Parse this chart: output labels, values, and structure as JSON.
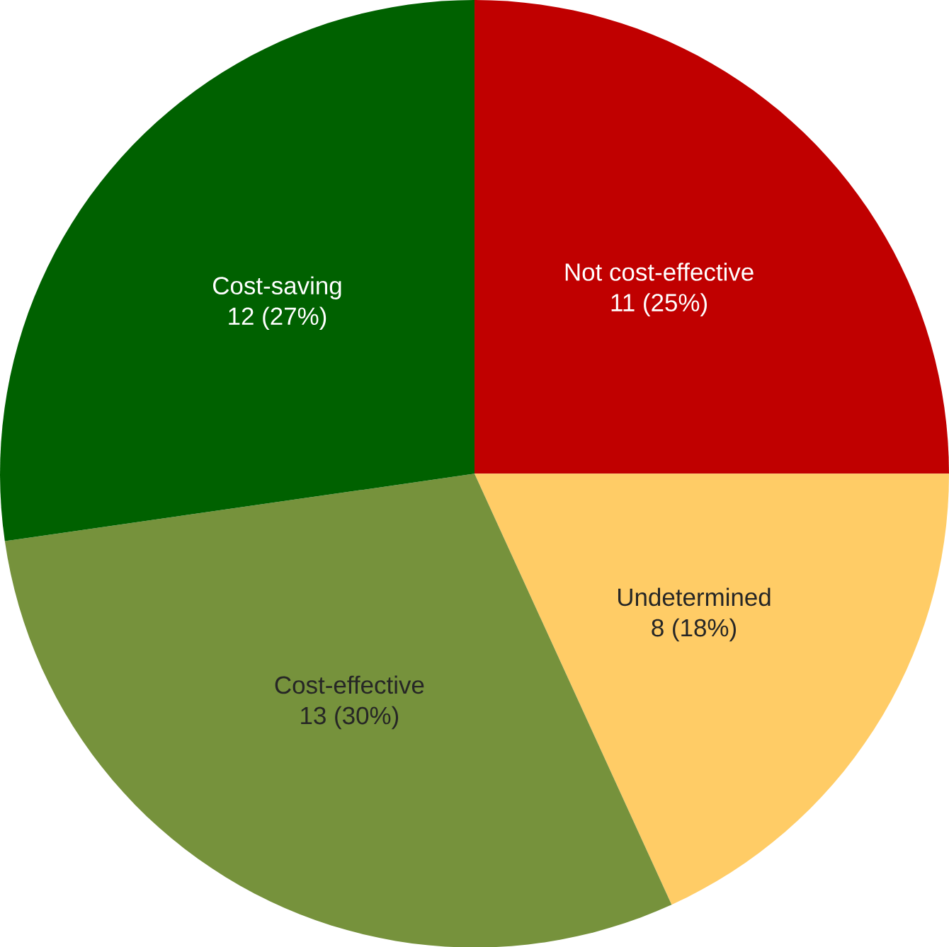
{
  "chart_data": {
    "type": "pie",
    "categories": [
      "Not cost-effective",
      "Undetermined",
      "Cost-effective",
      "Cost-saving"
    ],
    "values": [
      11,
      8,
      13,
      12
    ],
    "value_labels": [
      "11 (25%)",
      "8 (18%)",
      "13 (30%)",
      "12 (27%)"
    ],
    "colors": [
      "#c00000",
      "#ffcc66",
      "#76923c",
      "#006100"
    ]
  }
}
